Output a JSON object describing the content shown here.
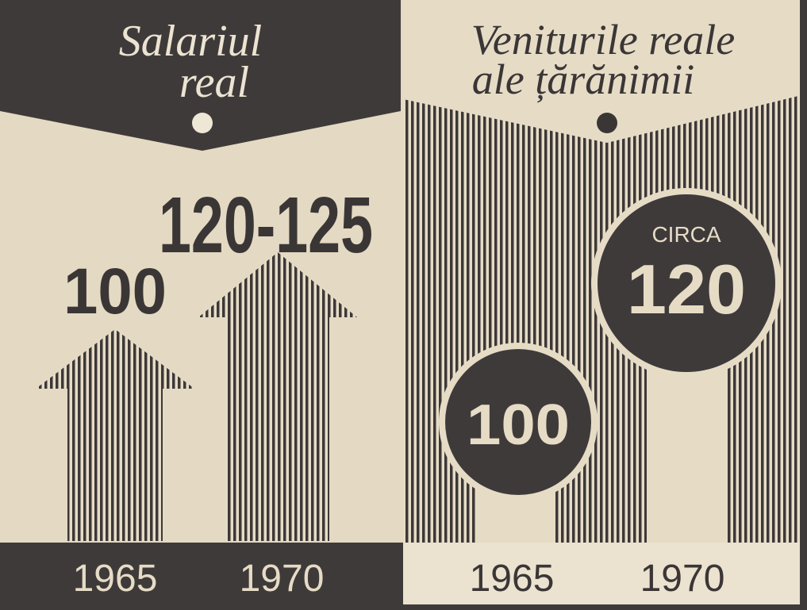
{
  "panels": [
    {
      "title": [
        "Salariul",
        "real"
      ],
      "items": [
        {
          "value": "100",
          "year": "1965"
        },
        {
          "value": "120-125",
          "year": "1970"
        }
      ]
    },
    {
      "title": [
        "Veniturile reale",
        "ale țărănimii"
      ],
      "items": [
        {
          "value": "100",
          "year": "1965"
        },
        {
          "prefix": "CIRCA",
          "value": "120",
          "year": "1970"
        }
      ]
    }
  ]
}
